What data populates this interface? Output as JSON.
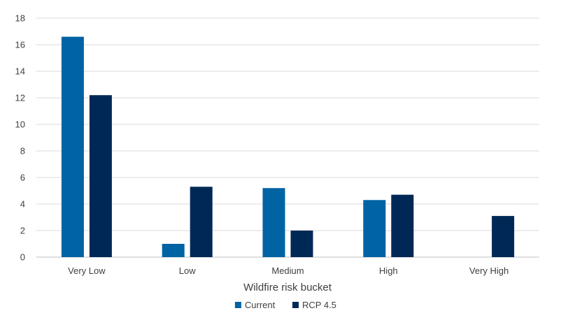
{
  "chart_data": {
    "type": "bar",
    "title": "",
    "xlabel": "Wildfire risk bucket",
    "ylabel": "",
    "categories": [
      "Very Low",
      "Low",
      "Medium",
      "High",
      "Very High"
    ],
    "series": [
      {
        "name": "Current",
        "color": "#0063A3",
        "values": [
          16.6,
          1.0,
          5.2,
          4.3,
          0.0
        ]
      },
      {
        "name": "RCP 4.5",
        "color": "#002856",
        "values": [
          12.2,
          5.3,
          2.0,
          4.7,
          3.1
        ]
      }
    ],
    "ylim": [
      0,
      18
    ],
    "yticks": [
      "0",
      "2",
      "4",
      "6",
      "8",
      "10",
      "12",
      "14",
      "16",
      "18"
    ],
    "grid": true,
    "legend_position": "bottom"
  }
}
